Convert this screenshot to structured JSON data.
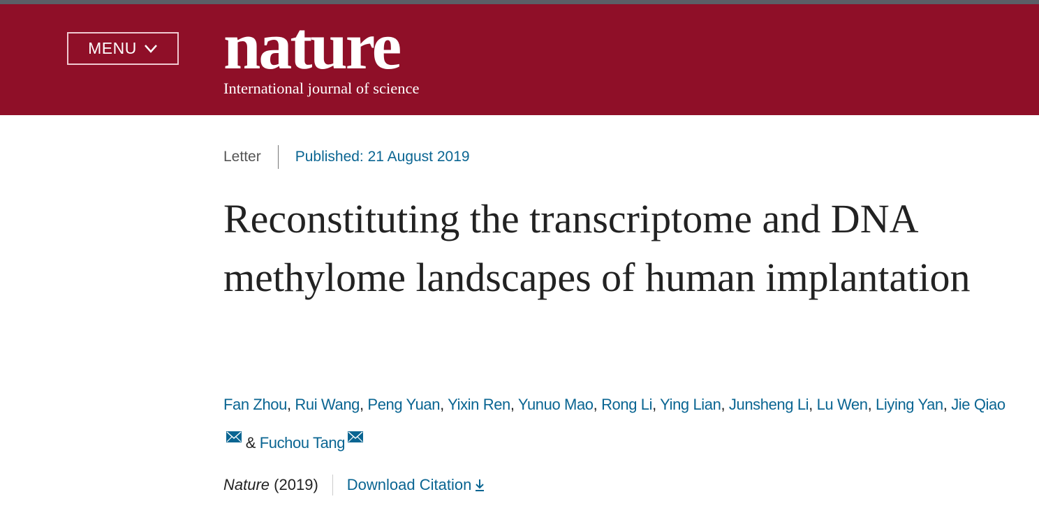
{
  "header": {
    "menu_label": "MENU",
    "logo_word": "nature",
    "logo_tagline": "International journal of science",
    "brand_color": "#8f0f28"
  },
  "article": {
    "type": "Letter",
    "published": "Published: 21 August 2019",
    "title": "Reconstituting the transcriptome and DNA methylome landscapes of human implantation",
    "authors": [
      "Fan Zhou",
      "Rui Wang",
      "Peng Yuan",
      "Yixin Ren",
      "Yunuo Mao",
      "Rong Li",
      "Ying Lian",
      "Junsheng Li",
      "Lu Wen",
      "Liying Yan",
      "Jie Qiao",
      "Fuchou Tang"
    ],
    "corresponding_icon": "envelope-icon",
    "journal": "Nature",
    "year": "(2019)",
    "download_citation": "Download Citation",
    "link_color": "#0a6592"
  }
}
